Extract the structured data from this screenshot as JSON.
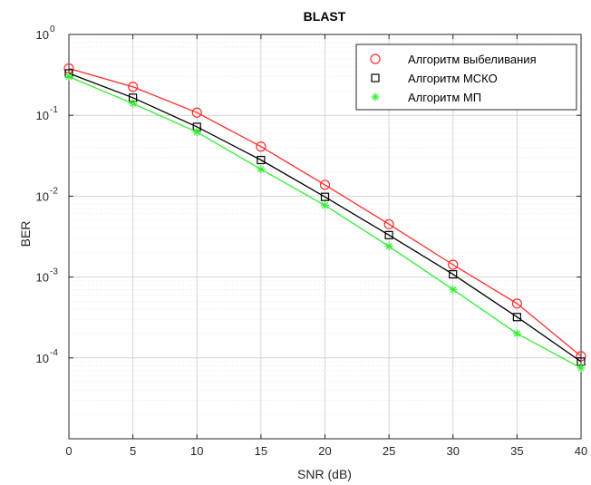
{
  "chart_data": {
    "type": "line",
    "title": "BLAST",
    "xlabel": "SNR (dB)",
    "ylabel": "BER",
    "xlim": [
      0,
      40
    ],
    "ylim": [
      1e-05,
      1
    ],
    "yscale": "log",
    "grid": true,
    "minor_grid": true,
    "legend_position": "top-right",
    "x_ticks": [
      "0",
      "5",
      "10",
      "15",
      "20",
      "25",
      "30",
      "35",
      "40"
    ],
    "y_ticks": [
      {
        "base": "10",
        "exp": "0",
        "value": 1
      },
      {
        "base": "10",
        "exp": "-1",
        "value": 0.1
      },
      {
        "base": "10",
        "exp": "-2",
        "value": 0.01
      },
      {
        "base": "10",
        "exp": "-3",
        "value": 0.001
      },
      {
        "base": "10",
        "exp": "-4",
        "value": 0.0001
      }
    ],
    "x": [
      0,
      5,
      10,
      15,
      20,
      25,
      30,
      35,
      40
    ],
    "series": [
      {
        "name": "Алгоритм выбеливания",
        "color": "#ff2b2b",
        "marker": "circle",
        "values": [
          0.38,
          0.225,
          0.108,
          0.041,
          0.0138,
          0.0045,
          0.00142,
          0.00047,
          0.000105
        ]
      },
      {
        "name": "Алгоритм МСКО",
        "color": "#000000",
        "marker": "square",
        "values": [
          0.33,
          0.165,
          0.072,
          0.028,
          0.0098,
          0.0033,
          0.00108,
          0.00032,
          9e-05
        ]
      },
      {
        "name": "Алгоритм МП",
        "color": "#33ee33",
        "marker": "asterisk",
        "values": [
          0.3,
          0.14,
          0.062,
          0.0215,
          0.0077,
          0.0024,
          0.0007,
          0.0002,
          7.5e-05
        ]
      }
    ]
  }
}
